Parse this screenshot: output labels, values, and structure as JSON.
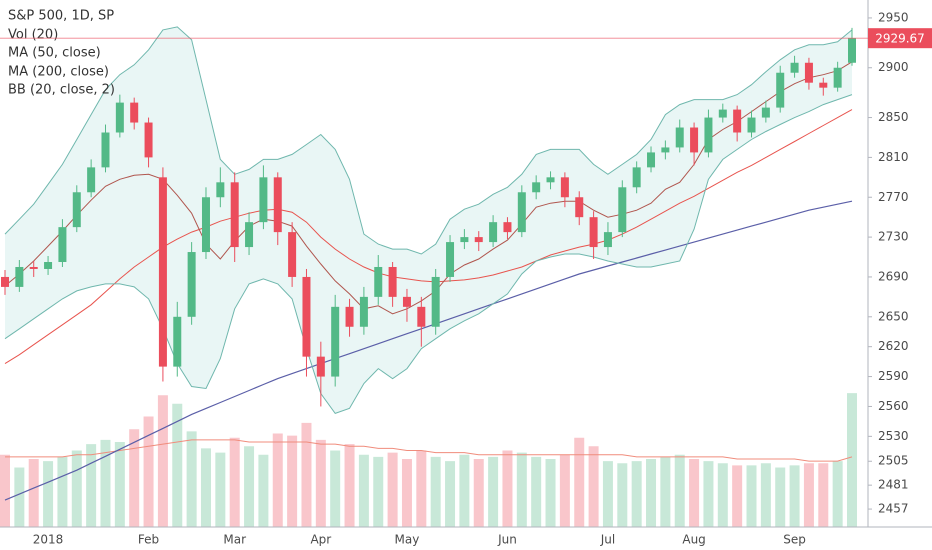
{
  "chart_data": {
    "type": "candlestick",
    "title": "S&P 500, 1D, SP",
    "categories": [
      null,
      null,
      null,
      "2018",
      null,
      null,
      null,
      null,
      null,
      null,
      "Feb",
      null,
      null,
      null,
      null,
      null,
      "Mar",
      null,
      null,
      null,
      null,
      null,
      "Apr",
      null,
      null,
      null,
      null,
      null,
      "May",
      null,
      null,
      null,
      null,
      null,
      null,
      "Jun",
      null,
      null,
      null,
      null,
      null,
      null,
      "Jul",
      null,
      null,
      null,
      null,
      null,
      "Aug",
      null,
      null,
      null,
      null,
      null,
      null,
      "Sep",
      null,
      null,
      null,
      null
    ],
    "open": [
      2690,
      2680,
      2700,
      2698,
      2705,
      2740,
      2775,
      2800,
      2835,
      2865,
      2845,
      2790,
      2600,
      2650,
      2715,
      2770,
      2785,
      2720,
      2745,
      2790,
      2735,
      2690,
      2610,
      2590,
      2660,
      2640,
      2670,
      2700,
      2670,
      2660,
      2640,
      2690,
      2725,
      2730,
      2725,
      2745,
      2735,
      2775,
      2785,
      2790,
      2770,
      2750,
      2720,
      2735,
      2780,
      2800,
      2815,
      2820,
      2840,
      2815,
      2850,
      2858,
      2835,
      2850,
      2860,
      2895,
      2905,
      2885,
      2880,
      2905
    ],
    "high": [
      2697,
      2707,
      2706,
      2711,
      2748,
      2782,
      2808,
      2843,
      2873,
      2870,
      2850,
      2800,
      2665,
      2725,
      2780,
      2800,
      2795,
      2755,
      2802,
      2795,
      2745,
      2698,
      2625,
      2672,
      2668,
      2680,
      2712,
      2705,
      2678,
      2670,
      2698,
      2732,
      2738,
      2736,
      2752,
      2750,
      2782,
      2792,
      2796,
      2795,
      2776,
      2756,
      2745,
      2787,
      2806,
      2821,
      2827,
      2848,
      2845,
      2858,
      2864,
      2862,
      2857,
      2867,
      2902,
      2912,
      2910,
      2890,
      2906,
      2940
    ],
    "low": [
      2672,
      2675,
      2690,
      2692,
      2700,
      2735,
      2770,
      2795,
      2830,
      2838,
      2800,
      2585,
      2590,
      2642,
      2708,
      2760,
      2705,
      2712,
      2738,
      2722,
      2680,
      2590,
      2560,
      2580,
      2630,
      2632,
      2662,
      2660,
      2645,
      2620,
      2632,
      2685,
      2718,
      2716,
      2720,
      2728,
      2730,
      2768,
      2778,
      2760,
      2742,
      2708,
      2712,
      2730,
      2774,
      2795,
      2808,
      2815,
      2802,
      2810,
      2845,
      2826,
      2830,
      2845,
      2855,
      2890,
      2878,
      2872,
      2876,
      2902
    ],
    "close": [
      2680,
      2700,
      2698,
      2705,
      2740,
      2775,
      2800,
      2835,
      2865,
      2845,
      2810,
      2600,
      2650,
      2715,
      2770,
      2785,
      2720,
      2745,
      2790,
      2735,
      2690,
      2610,
      2590,
      2660,
      2640,
      2670,
      2700,
      2670,
      2660,
      2640,
      2690,
      2725,
      2730,
      2725,
      2745,
      2735,
      2775,
      2785,
      2790,
      2770,
      2750,
      2720,
      2735,
      2780,
      2800,
      2815,
      2820,
      2840,
      2815,
      2850,
      2858,
      2835,
      2850,
      2860,
      2895,
      2905,
      2885,
      2880,
      2900,
      2929.67
    ],
    "up_color": "#53b987",
    "down_color": "#eb4d5c",
    "ylim": [
      2439,
      2968
    ],
    "yticks": [
      2950,
      2900,
      2850,
      2810,
      2770,
      2730,
      2690,
      2650,
      2620,
      2590,
      2560,
      2530,
      2505,
      2481,
      2457
    ],
    "volume": {
      "name": "Vol (20)",
      "ylim": [
        0,
        8
      ],
      "values": [
        3.4,
        2.8,
        3.2,
        3.1,
        3.3,
        3.6,
        3.9,
        4.1,
        4.0,
        4.6,
        5.2,
        6.2,
        5.8,
        4.5,
        3.7,
        3.5,
        4.2,
        3.8,
        3.4,
        4.4,
        4.3,
        4.9,
        4.1,
        3.6,
        3.9,
        3.4,
        3.3,
        3.5,
        3.2,
        3.6,
        3.3,
        3.1,
        3.4,
        3.2,
        3.3,
        3.6,
        3.5,
        3.3,
        3.2,
        3.4,
        4.2,
        3.8,
        3.1,
        3.0,
        3.1,
        3.2,
        3.3,
        3.4,
        3.2,
        3.1,
        3.0,
        2.9,
        2.9,
        3.0,
        2.8,
        2.9,
        3.0,
        3.0,
        3.1,
        6.3
      ],
      "ma": [
        3.3,
        3.3,
        3.3,
        3.3,
        3.3,
        3.4,
        3.4,
        3.5,
        3.6,
        3.7,
        3.8,
        3.9,
        4.0,
        4.1,
        4.1,
        4.1,
        4.1,
        4.0,
        4.0,
        4.0,
        4.0,
        4.0,
        3.9,
        3.9,
        3.8,
        3.8,
        3.7,
        3.7,
        3.6,
        3.6,
        3.5,
        3.5,
        3.5,
        3.4,
        3.4,
        3.4,
        3.4,
        3.4,
        3.4,
        3.4,
        3.4,
        3.4,
        3.4,
        3.4,
        3.3,
        3.3,
        3.3,
        3.3,
        3.3,
        3.3,
        3.3,
        3.2,
        3.2,
        3.2,
        3.2,
        3.2,
        3.1,
        3.1,
        3.1,
        3.3
      ],
      "ma_color": "#f08c7c"
    },
    "ma50": {
      "name": "MA (50, close)",
      "color": "#e8544e",
      "values": [
        2603,
        2612,
        2622,
        2632,
        2642,
        2652,
        2662,
        2675,
        2688,
        2700,
        2710,
        2720,
        2728,
        2735,
        2740,
        2746,
        2750,
        2754,
        2757,
        2758,
        2755,
        2745,
        2730,
        2718,
        2708,
        2700,
        2694,
        2690,
        2688,
        2686,
        2685,
        2686,
        2687,
        2689,
        2692,
        2696,
        2700,
        2706,
        2712,
        2716,
        2720,
        2723,
        2727,
        2733,
        2740,
        2748,
        2756,
        2764,
        2771,
        2779,
        2787,
        2795,
        2802,
        2810,
        2818,
        2826,
        2834,
        2842,
        2850,
        2858
      ]
    },
    "ma200": {
      "name": "MA (200, close)",
      "color": "#5b5fa8",
      "values": [
        2466,
        2472,
        2478,
        2484,
        2490,
        2496,
        2503,
        2510,
        2517,
        2524,
        2531,
        2538,
        2545,
        2552,
        2558,
        2564,
        2570,
        2576,
        2582,
        2588,
        2593,
        2598,
        2603,
        2608,
        2613,
        2618,
        2623,
        2628,
        2633,
        2638,
        2643,
        2648,
        2653,
        2658,
        2663,
        2668,
        2673,
        2678,
        2683,
        2688,
        2693,
        2697,
        2701,
        2705,
        2709,
        2713,
        2717,
        2721,
        2725,
        2729,
        2733,
        2737,
        2741,
        2745,
        2749,
        2753,
        2757,
        2760,
        2763,
        2766
      ]
    },
    "bb": {
      "name": "BB (20, close, 2)",
      "color": "#6fb7ad",
      "basis_color": "#b0564e",
      "fill": "#e3f4f2",
      "upper": [
        2733,
        2748,
        2763,
        2783,
        2803,
        2828,
        2853,
        2878,
        2893,
        2903,
        2918,
        2938,
        2941,
        2928,
        2868,
        2808,
        2793,
        2798,
        2808,
        2808,
        2813,
        2823,
        2833,
        2818,
        2788,
        2733,
        2723,
        2718,
        2718,
        2713,
        2723,
        2748,
        2758,
        2763,
        2773,
        2780,
        2793,
        2813,
        2818,
        2818,
        2818,
        2803,
        2793,
        2803,
        2813,
        2828,
        2853,
        2863,
        2868,
        2868,
        2868,
        2873,
        2883,
        2896,
        2908,
        2918,
        2923,
        2923,
        2926,
        2938
      ],
      "basis": [
        2681,
        2693,
        2706,
        2721,
        2736,
        2752,
        2767,
        2781,
        2788,
        2792,
        2793,
        2788,
        2772,
        2754,
        2723,
        2708,
        2726,
        2741,
        2748,
        2746,
        2741,
        2721,
        2703,
        2686,
        2673,
        2658,
        2661,
        2653,
        2658,
        2666,
        2676,
        2693,
        2702,
        2708,
        2718,
        2727,
        2743,
        2760,
        2764,
        2766,
        2766,
        2757,
        2750,
        2753,
        2757,
        2764,
        2778,
        2785,
        2803,
        2828,
        2838,
        2846,
        2856,
        2866,
        2876,
        2884,
        2890,
        2893,
        2897,
        2906
      ],
      "lower": [
        2628,
        2638,
        2648,
        2658,
        2668,
        2676,
        2680,
        2683,
        2683,
        2680,
        2668,
        2638,
        2603,
        2580,
        2578,
        2608,
        2658,
        2683,
        2688,
        2683,
        2668,
        2618,
        2573,
        2553,
        2558,
        2583,
        2598,
        2588,
        2598,
        2618,
        2628,
        2638,
        2646,
        2653,
        2663,
        2673,
        2693,
        2706,
        2710,
        2713,
        2713,
        2710,
        2706,
        2703,
        2700,
        2700,
        2703,
        2706,
        2738,
        2788,
        2808,
        2818,
        2828,
        2836,
        2843,
        2850,
        2856,
        2863,
        2868,
        2873
      ]
    }
  }
}
